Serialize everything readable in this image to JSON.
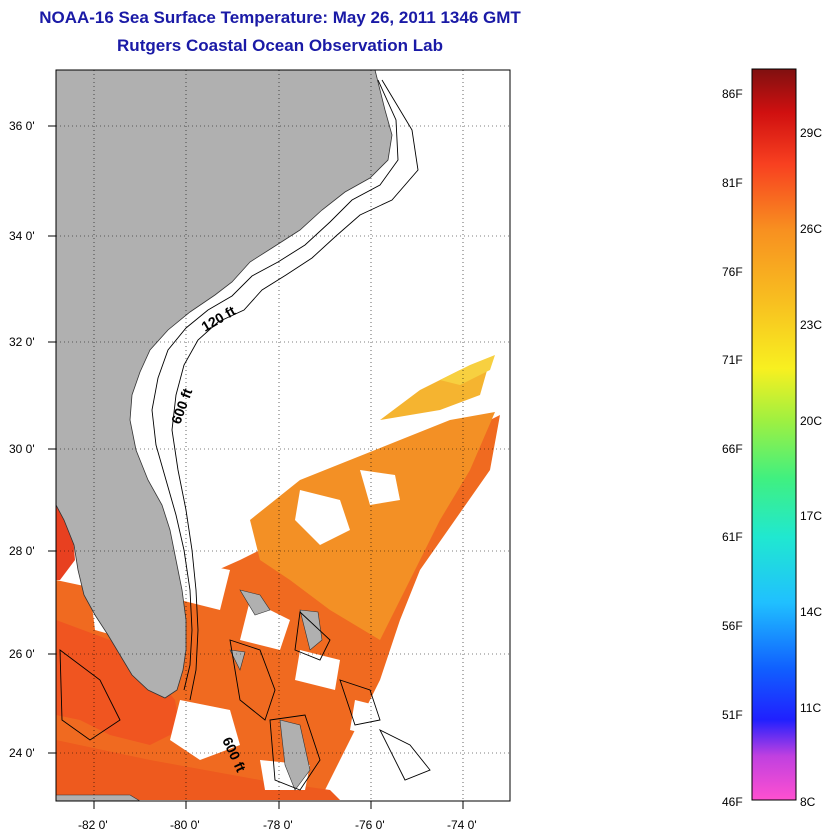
{
  "title": "NOAA-16 Sea Surface Temperature:  May 26, 2011 1346 GMT",
  "subtitle": "Rutgers Coastal Ocean Observation Lab",
  "map": {
    "lon_labels": [
      "-82 0'",
      "-80 0'",
      "-78 0'",
      "-76 0'",
      "-74 0'"
    ],
    "lat_labels": [
      "36 0'",
      "34 0'",
      "32 0'",
      "30 0'",
      "28 0'",
      "26 0'",
      "24 0'"
    ],
    "contour_labels": [
      "120 ft",
      "600 ft",
      "600 ft"
    ],
    "colors": {
      "land": "#b0b0b0",
      "cloud": "#ffffff",
      "warm_sst": "#f26a1c",
      "mid_sst": "#f5a020",
      "cool_sst": "#f8d030"
    }
  },
  "colorbar": {
    "fahrenheit_labels": [
      "86F",
      "81F",
      "76F",
      "71F",
      "66F",
      "61F",
      "56F",
      "51F",
      "46F"
    ],
    "celsius_labels": [
      "29C",
      "26C",
      "23C",
      "20C",
      "17C",
      "14C",
      "11C",
      "8C"
    ]
  }
}
